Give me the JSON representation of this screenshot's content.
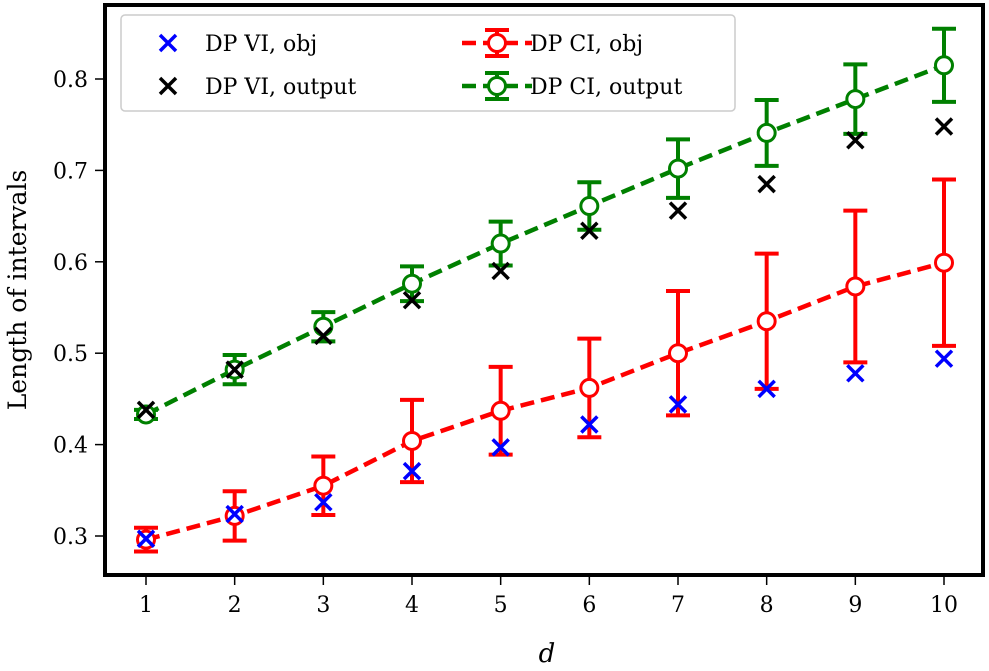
{
  "chart_data": {
    "type": "line",
    "title": "",
    "xlabel": "d",
    "ylabel": "Length of intervals",
    "x": [
      1,
      2,
      3,
      4,
      5,
      6,
      7,
      8,
      9,
      10
    ],
    "xlim": [
      0.55,
      10.45
    ],
    "ylim": [
      0.257,
      0.88
    ],
    "xticks": [
      "1",
      "2",
      "3",
      "4",
      "5",
      "6",
      "7",
      "8",
      "9",
      "10"
    ],
    "yticks": [
      "0.3",
      "0.4",
      "0.5",
      "0.6",
      "0.7",
      "0.8"
    ],
    "ytick_values": [
      0.3,
      0.4,
      0.5,
      0.6,
      0.7,
      0.8
    ],
    "grid": false,
    "legend_position": "top-left",
    "series": [
      {
        "name": "DP VI, obj",
        "style": "marker-x",
        "color": "#0000ff",
        "values": [
          0.297,
          0.324,
          0.337,
          0.371,
          0.397,
          0.422,
          0.444,
          0.461,
          0.478,
          0.494
        ]
      },
      {
        "name": "DP VI, output",
        "style": "marker-x",
        "color": "#000000",
        "values": [
          0.438,
          0.482,
          0.519,
          0.558,
          0.59,
          0.634,
          0.656,
          0.685,
          0.733,
          0.748
        ]
      },
      {
        "name": "DP CI, obj",
        "style": "dashed-errorbar",
        "color": "#ff0000",
        "values": [
          0.296,
          0.322,
          0.355,
          0.404,
          0.437,
          0.462,
          0.5,
          0.535,
          0.573,
          0.599
        ],
        "errors": [
          0.013,
          0.027,
          0.032,
          0.045,
          0.048,
          0.054,
          0.068,
          0.074,
          0.083,
          0.091
        ]
      },
      {
        "name": "DP CI, output",
        "style": "dashed-errorbar",
        "color": "#008000",
        "values": [
          0.433,
          0.482,
          0.529,
          0.576,
          0.62,
          0.661,
          0.702,
          0.741,
          0.778,
          0.815
        ],
        "errors": [
          0.005,
          0.016,
          0.016,
          0.019,
          0.024,
          0.026,
          0.032,
          0.036,
          0.038,
          0.04
        ]
      }
    ]
  }
}
